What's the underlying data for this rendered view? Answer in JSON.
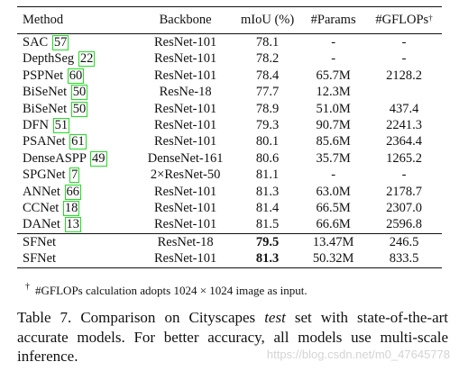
{
  "table": {
    "headers": {
      "method": "Method",
      "backbone": "Backbone",
      "miou": "mIoU (%)",
      "params": "#Params",
      "gflops": "#GFLOPs",
      "gflops_mark": "†"
    },
    "rows": [
      {
        "method": "SAC",
        "ref": "57",
        "backbone": "ResNet-101",
        "miou": "78.1",
        "params": "-",
        "gflops": "-"
      },
      {
        "method": "DepthSeg",
        "ref": "22",
        "backbone": "ResNet-101",
        "miou": "78.2",
        "params": "-",
        "gflops": "-"
      },
      {
        "method": "PSPNet",
        "ref": "60",
        "backbone": "ResNet-101",
        "miou": "78.4",
        "params": "65.7M",
        "gflops": "2128.2"
      },
      {
        "method": "BiSeNet",
        "ref": "50",
        "backbone": "ResNe-18",
        "miou": "77.7",
        "params": "12.3M",
        "gflops": ""
      },
      {
        "method": "BiSeNet",
        "ref": "50",
        "backbone": "ResNet-101",
        "miou": "78.9",
        "params": "51.0M",
        "gflops": "437.4"
      },
      {
        "method": "DFN",
        "ref": "51",
        "backbone": "ResNet-101",
        "miou": "79.3",
        "params": "90.7M",
        "gflops": "2241.3"
      },
      {
        "method": "PSANet",
        "ref": "61",
        "backbone": "ResNet-101",
        "miou": "80.1",
        "params": "85.6M",
        "gflops": "2364.4"
      },
      {
        "method": "DenseASPP",
        "ref": "49",
        "backbone": "DenseNet-161",
        "miou": "80.6",
        "params": "35.7M",
        "gflops": "1265.2"
      },
      {
        "method": "SPGNet",
        "ref": "7",
        "backbone": "2×ResNet-50",
        "miou": "81.1",
        "params": "-",
        "gflops": "-"
      },
      {
        "method": "ANNet",
        "ref": "66",
        "backbone": "ResNet-101",
        "miou": "81.3",
        "params": "63.0M",
        "gflops": "2178.7"
      },
      {
        "method": "CCNet",
        "ref": "18",
        "backbone": "ResNet-101",
        "miou": "81.4",
        "params": "66.5M",
        "gflops": "2307.0"
      },
      {
        "method": "DANet",
        "ref": "13",
        "backbone": "ResNet-101",
        "miou": "81.5",
        "params": "66.6M",
        "gflops": "2596.8"
      }
    ],
    "ours": [
      {
        "method": "SFNet",
        "backbone": "ResNet-18",
        "miou": "79.5",
        "params": "13.47M",
        "gflops": "246.5"
      },
      {
        "method": "SFNet",
        "backbone": "ResNet-101",
        "miou": "81.3",
        "params": "50.32M",
        "gflops": "833.5"
      }
    ]
  },
  "footnote": {
    "mark": "†",
    "text": "#GFLOPs calculation adopts 1024 × 1024 image as input."
  },
  "caption": {
    "line1_pre": "Table 7. Comparison on Cityscapes ",
    "line1_em": "test",
    "line1_post": " set with state-of-the-art",
    "line2": "accurate models. For better accuracy, all models use multi-scale",
    "line3": "inference."
  },
  "watermark": "https://blog.csdn.net/m0_47645778",
  "colors": {
    "ref_box": "#22dd22",
    "text": "#111111",
    "watermark": "#d4d4d4"
  }
}
